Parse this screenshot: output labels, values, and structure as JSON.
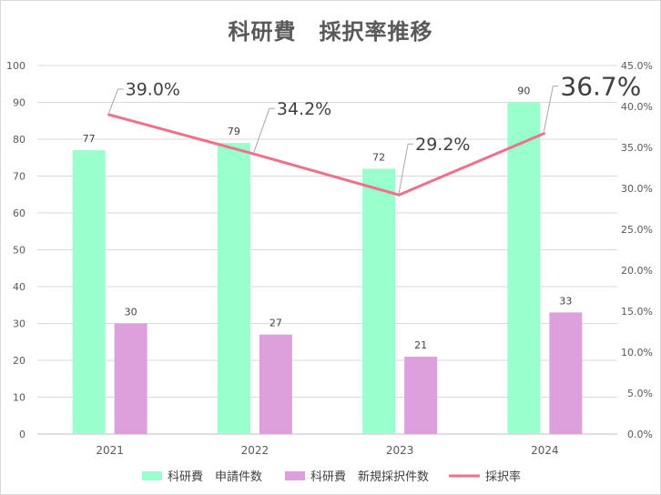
{
  "chart_data": {
    "type": "bar",
    "title": "科研費　採択率推移",
    "categories": [
      "2021",
      "2022",
      "2023",
      "2024"
    ],
    "series": [
      {
        "name": "科研費　申請件数",
        "type": "bar",
        "axis": "left",
        "color": "#99ffcc",
        "values": [
          77,
          79,
          72,
          90
        ]
      },
      {
        "name": "科研費　新規採択件数",
        "type": "bar",
        "axis": "left",
        "color": "#dda0dd",
        "values": [
          30,
          27,
          21,
          33
        ]
      },
      {
        "name": "採択率",
        "type": "line",
        "axis": "right",
        "color": "#f0708a",
        "values": [
          39.0,
          34.2,
          29.2,
          36.7
        ]
      }
    ],
    "rate_labels": [
      "39.0%",
      "34.2%",
      "29.2%",
      "36.7%"
    ],
    "ylim": [
      0,
      100
    ],
    "yticks": [
      0,
      10,
      20,
      30,
      40,
      50,
      60,
      70,
      80,
      90,
      100
    ],
    "y2lim": [
      0,
      45
    ],
    "y2ticks": [
      "0.0%",
      "5.0%",
      "10.0%",
      "15.0%",
      "20.0%",
      "25.0%",
      "30.0%",
      "35.0%",
      "40.0%",
      "45.0%"
    ],
    "grid": true,
    "legend_position": "bottom"
  }
}
